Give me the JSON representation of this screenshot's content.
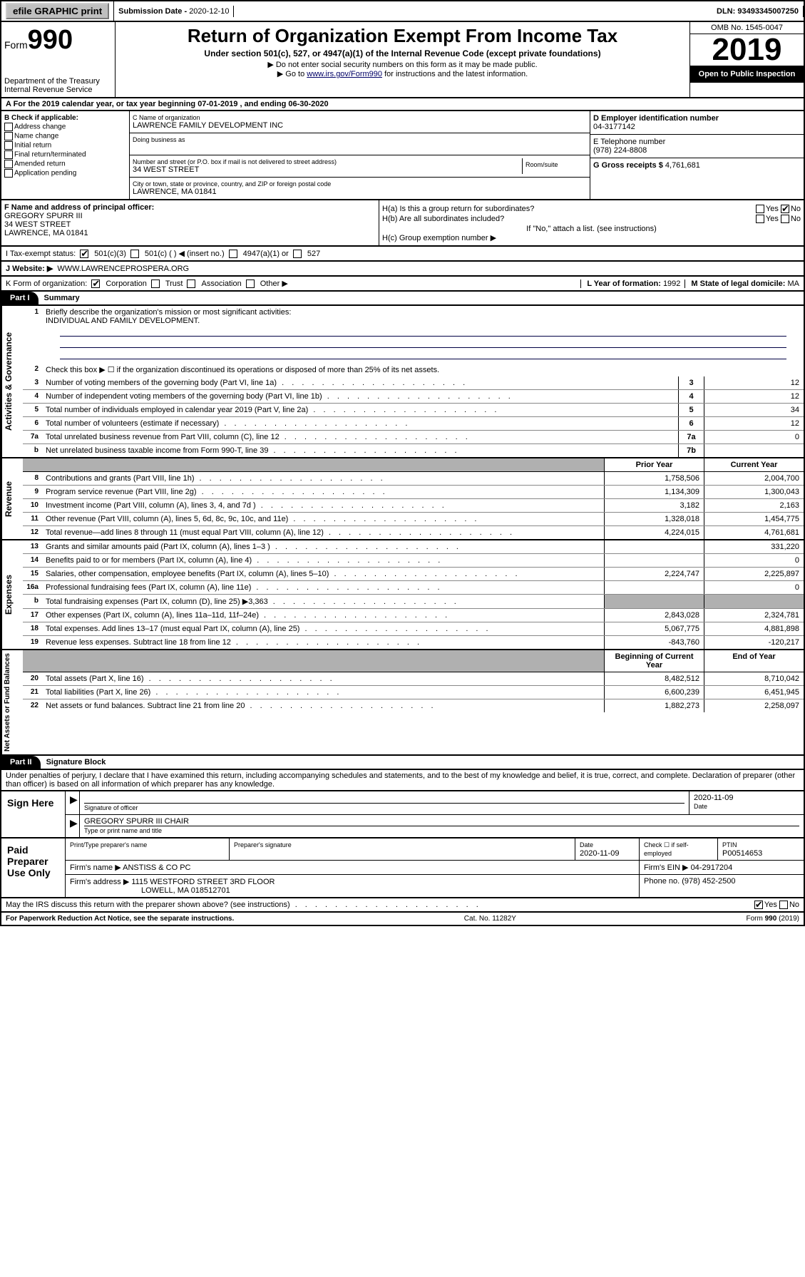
{
  "top": {
    "efile": "efile GRAPHIC print",
    "submission_label": "Submission Date - ",
    "submission_date": "2020-12-10",
    "dln_label": "DLN: ",
    "dln": "93493345007250"
  },
  "header": {
    "form_prefix": "Form",
    "form_num": "990",
    "dept": "Department of the Treasury\nInternal Revenue Service",
    "title": "Return of Organization Exempt From Income Tax",
    "subtitle": "Under section 501(c), 527, or 4947(a)(1) of the Internal Revenue Code (except private foundations)",
    "note1": "▶ Do not enter social security numbers on this form as it may be made public.",
    "note2_a": "▶ Go to ",
    "note2_link": "www.irs.gov/Form990",
    "note2_b": " for instructions and the latest information.",
    "omb": "OMB No. 1545-0047",
    "year": "2019",
    "open": "Open to Public Inspection"
  },
  "row_a": "A For the 2019 calendar year, or tax year beginning 07-01-2019    , and ending 06-30-2020",
  "b": {
    "label": "B Check if applicable:",
    "opts": [
      "Address change",
      "Name change",
      "Initial return",
      "Final return/terminated",
      "Amended return",
      "Application pending"
    ]
  },
  "c": {
    "name_label": "C Name of organization",
    "name": "LAWRENCE FAMILY DEVELOPMENT INC",
    "dba_label": "Doing business as",
    "addr_label": "Number and street (or P.O. box if mail is not delivered to street address)",
    "room_label": "Room/suite",
    "addr": "34 WEST STREET",
    "city_label": "City or town, state or province, country, and ZIP or foreign postal code",
    "city": "LAWRENCE, MA  01841"
  },
  "d": {
    "label": "D Employer identification number",
    "val": "04-3177142"
  },
  "e": {
    "label": "E Telephone number",
    "val": "(978) 224-8808"
  },
  "g": {
    "label": "G Gross receipts $ ",
    "val": "4,761,681"
  },
  "f": {
    "label": "F  Name and address of principal officer:",
    "name": "GREGORY SPURR III",
    "addr": "34 WEST STREET",
    "city": "LAWRENCE, MA  01841"
  },
  "h": {
    "a": "H(a)  Is this a group return for subordinates?",
    "b": "H(b)  Are all subordinates included?",
    "note": "If \"No,\" attach a list. (see instructions)",
    "c": "H(c)  Group exemption number ▶"
  },
  "i": {
    "label": "I   Tax-exempt status:",
    "o1": "501(c)(3)",
    "o2": "501(c) (  ) ◀ (insert no.)",
    "o3": "4947(a)(1) or",
    "o4": "527"
  },
  "j": {
    "label": "J    Website: ▶",
    "val": "WWW.LAWRENCEPROSPERA.ORG"
  },
  "k": {
    "label": "K Form of organization:",
    "o1": "Corporation",
    "o2": "Trust",
    "o3": "Association",
    "o4": "Other ▶"
  },
  "l": {
    "label": "L Year of formation: ",
    "val": "1992"
  },
  "m": {
    "label": "M State of legal domicile: ",
    "val": "MA"
  },
  "part1": {
    "label": "Part I",
    "title": "Summary"
  },
  "governance": {
    "label": "Activities & Governance",
    "l1": "Briefly describe the organization's mission or most significant activities:",
    "l1_val": "INDIVIDUAL AND FAMILY DEVELOPMENT.",
    "l2": "Check this box ▶ ☐  if the organization discontinued its operations or disposed of more than 25% of its net assets.",
    "lines": [
      {
        "n": "3",
        "t": "Number of voting members of the governing body (Part VI, line 1a)",
        "box": "3",
        "v": "12"
      },
      {
        "n": "4",
        "t": "Number of independent voting members of the governing body (Part VI, line 1b)",
        "box": "4",
        "v": "12"
      },
      {
        "n": "5",
        "t": "Total number of individuals employed in calendar year 2019 (Part V, line 2a)",
        "box": "5",
        "v": "34"
      },
      {
        "n": "6",
        "t": "Total number of volunteers (estimate if necessary)",
        "box": "6",
        "v": "12"
      },
      {
        "n": "7a",
        "t": "Total unrelated business revenue from Part VIII, column (C), line 12",
        "box": "7a",
        "v": "0"
      },
      {
        "n": "b",
        "t": "Net unrelated business taxable income from Form 990-T, line 39",
        "box": "7b",
        "v": ""
      }
    ]
  },
  "revenue": {
    "label": "Revenue",
    "hdr_prior": "Prior Year",
    "hdr_curr": "Current Year",
    "lines": [
      {
        "n": "8",
        "t": "Contributions and grants (Part VIII, line 1h)",
        "p": "1,758,506",
        "c": "2,004,700"
      },
      {
        "n": "9",
        "t": "Program service revenue (Part VIII, line 2g)",
        "p": "1,134,309",
        "c": "1,300,043"
      },
      {
        "n": "10",
        "t": "Investment income (Part VIII, column (A), lines 3, 4, and 7d )",
        "p": "3,182",
        "c": "2,163"
      },
      {
        "n": "11",
        "t": "Other revenue (Part VIII, column (A), lines 5, 6d, 8c, 9c, 10c, and 11e)",
        "p": "1,328,018",
        "c": "1,454,775"
      },
      {
        "n": "12",
        "t": "Total revenue—add lines 8 through 11 (must equal Part VIII, column (A), line 12)",
        "p": "4,224,015",
        "c": "4,761,681"
      }
    ]
  },
  "expenses": {
    "label": "Expenses",
    "lines": [
      {
        "n": "13",
        "t": "Grants and similar amounts paid (Part IX, column (A), lines 1–3 )",
        "p": "",
        "c": "331,220"
      },
      {
        "n": "14",
        "t": "Benefits paid to or for members (Part IX, column (A), line 4)",
        "p": "",
        "c": "0"
      },
      {
        "n": "15",
        "t": "Salaries, other compensation, employee benefits (Part IX, column (A), lines 5–10)",
        "p": "2,224,747",
        "c": "2,225,897"
      },
      {
        "n": "16a",
        "t": "Professional fundraising fees (Part IX, column (A), line 11e)",
        "p": "",
        "c": "0"
      },
      {
        "n": "b",
        "t": "Total fundraising expenses (Part IX, column (D), line 25) ▶3,363",
        "p": "gray",
        "c": "gray"
      },
      {
        "n": "17",
        "t": "Other expenses (Part IX, column (A), lines 11a–11d, 11f–24e)",
        "p": "2,843,028",
        "c": "2,324,781"
      },
      {
        "n": "18",
        "t": "Total expenses. Add lines 13–17 (must equal Part IX, column (A), line 25)",
        "p": "5,067,775",
        "c": "4,881,898"
      },
      {
        "n": "19",
        "t": "Revenue less expenses. Subtract line 18 from line 12",
        "p": "-843,760",
        "c": "-120,217"
      }
    ]
  },
  "netassets": {
    "label": "Net Assets or Fund Balances",
    "hdr_prior": "Beginning of Current Year",
    "hdr_curr": "End of Year",
    "lines": [
      {
        "n": "20",
        "t": "Total assets (Part X, line 16)",
        "p": "8,482,512",
        "c": "8,710,042"
      },
      {
        "n": "21",
        "t": "Total liabilities (Part X, line 26)",
        "p": "6,600,239",
        "c": "6,451,945"
      },
      {
        "n": "22",
        "t": "Net assets or fund balances. Subtract line 21 from line 20",
        "p": "1,882,273",
        "c": "2,258,097"
      }
    ]
  },
  "part2": {
    "label": "Part II",
    "title": "Signature Block"
  },
  "perjury": "Under penalties of perjury, I declare that I have examined this return, including accompanying schedules and statements, and to the best of my knowledge and belief, it is true, correct, and complete. Declaration of preparer (other than officer) is based on all information of which preparer has any knowledge.",
  "sign": {
    "left": "Sign Here",
    "date": "2020-11-09",
    "sig_label": "Signature of officer",
    "date_label": "Date",
    "name": "GREGORY SPURR III  CHAIR",
    "name_label": "Type or print name and title"
  },
  "preparer": {
    "left": "Paid Preparer Use Only",
    "h1": "Print/Type preparer's name",
    "h2": "Preparer's signature",
    "h3": "Date",
    "h3v": "2020-11-09",
    "h4": "Check ☐ if self-employed",
    "h5": "PTIN",
    "h5v": "P00514653",
    "firm_label": "Firm's name     ▶",
    "firm": "ANSTISS & CO PC",
    "ein_label": "Firm's EIN ▶",
    "ein": "04-2917204",
    "addr_label": "Firm's address ▶",
    "addr": "1115 WESTFORD STREET 3RD FLOOR",
    "addr2": "LOWELL, MA  018512701",
    "phone_label": "Phone no. ",
    "phone": "(978) 452-2500"
  },
  "discuss": "May the IRS discuss this return with the preparer shown above? (see instructions)",
  "footer": {
    "left": "For Paperwork Reduction Act Notice, see the separate instructions.",
    "mid": "Cat. No. 11282Y",
    "right": "Form 990 (2019)"
  }
}
